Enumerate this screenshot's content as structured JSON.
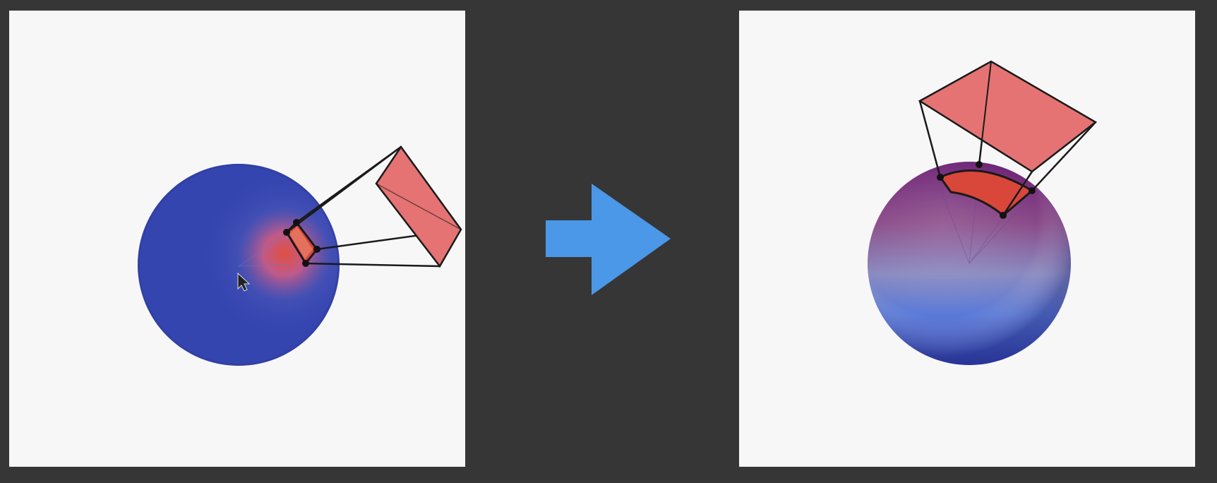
{
  "diagram": {
    "panels": [
      {
        "id": "before",
        "sphere_color": "#3545b0",
        "highlight_color": "#d9463a",
        "frustum_color": "#e57373"
      },
      {
        "id": "after",
        "sphere_top_color": "#7a2a7e",
        "sphere_bottom_color": "#2f3fae",
        "highlight_color": "#d9463a",
        "frustum_color": "#e57373"
      }
    ],
    "arrow": {
      "color": "#4b97e8"
    },
    "background_color": "#363636",
    "panel_color": "#f7f7f7"
  }
}
